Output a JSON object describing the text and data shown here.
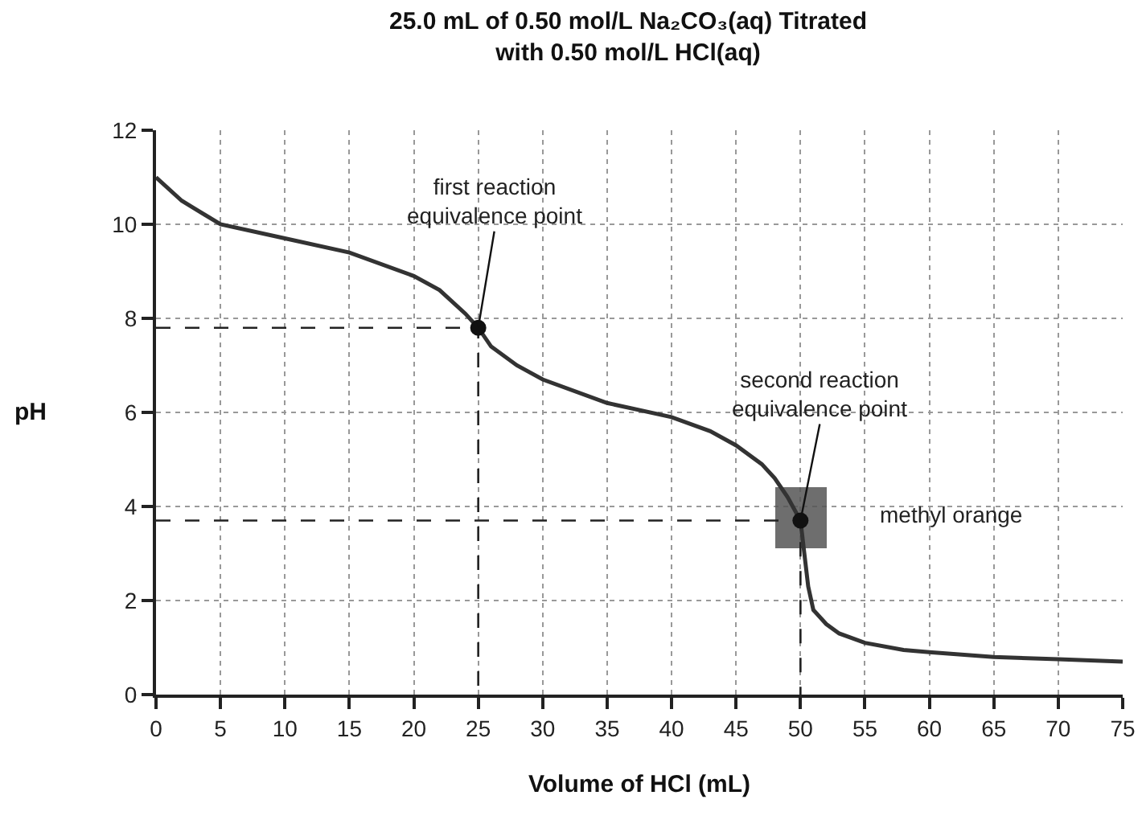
{
  "chart_data": {
    "type": "line",
    "title": "25.0 mL of 0.50 mol/L Na₂CO₃(aq) Titrated\nwith 0.50 mol/L HCl(aq)",
    "xlabel": "Volume of HCl (mL)",
    "ylabel": "pH",
    "xlim": [
      0,
      75
    ],
    "xticks": [
      0,
      5,
      10,
      15,
      20,
      25,
      30,
      35,
      40,
      45,
      50,
      55,
      60,
      65,
      70,
      75
    ],
    "ylim": [
      0,
      12
    ],
    "yticks": [
      0,
      2,
      4,
      6,
      8,
      10,
      12
    ],
    "grid": true,
    "legend": false,
    "series": [
      {
        "type": "bar",
        "color": "#555555",
        "x": [
          50
        ],
        "base": [
          3.1
        ],
        "values": [
          1.3
        ]
      },
      {
        "type": "line",
        "line_style": "dashed",
        "color": "#222222",
        "x": [
          0,
          25,
          25
        ],
        "values": [
          7.8,
          7.8,
          0
        ]
      },
      {
        "type": "line",
        "line_style": "dashed",
        "color": "#222222",
        "x": [
          0,
          50,
          50
        ],
        "values": [
          3.7,
          3.7,
          0
        ]
      },
      {
        "line_style": "solid",
        "color": "#333333",
        "x": [
          0,
          2,
          5,
          10,
          15,
          20,
          22,
          24,
          25,
          26,
          28,
          30,
          35,
          40,
          43,
          45,
          47,
          48,
          49,
          50,
          50.3,
          50.6,
          51,
          52,
          53,
          55,
          58,
          60,
          65,
          70,
          75
        ],
        "values": [
          11.0,
          10.5,
          10.0,
          9.7,
          9.4,
          8.9,
          8.6,
          8.1,
          7.8,
          7.4,
          7.0,
          6.7,
          6.2,
          5.9,
          5.6,
          5.3,
          4.9,
          4.6,
          4.2,
          3.7,
          3.0,
          2.3,
          1.8,
          1.5,
          1.3,
          1.1,
          0.95,
          0.9,
          0.8,
          0.75,
          0.7
        ]
      },
      {
        "type": "scatter",
        "marker": "circle",
        "color": "#111111",
        "x": [
          25,
          50
        ],
        "values": [
          7.8,
          3.7
        ]
      }
    ],
    "annotations": [
      {
        "text": "first reaction\nequivalence point",
        "x": 25,
        "y": 7.8
      },
      {
        "text": "second reaction\nequivalence point",
        "x": 50,
        "y": 3.7
      },
      "methyl orange"
    ]
  }
}
